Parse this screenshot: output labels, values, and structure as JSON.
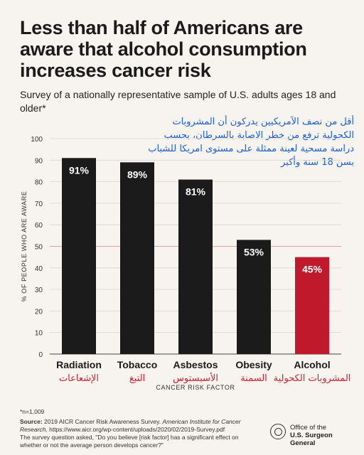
{
  "title": "Less than half of Americans are aware that alcohol consumption increases cancer risk",
  "subtitle": "Survey of a nationally representative sample of U.S. adults ages 18 and older*",
  "arabic_note": "أقل من نصف الآمريكيين يدركون أن المشروبات الكحولية ترفع من خطر الاصابة بالسرطان، بحسب دراسة مسحية لعينة ممثلة على مستوى امريكا للشباب بسن 18  سنة وأكبر",
  "chart_data": {
    "type": "bar",
    "categories": [
      "Radiation",
      "Tobacco",
      "Asbestos",
      "Obesity",
      "Alcohol"
    ],
    "categories_arabic": [
      "الإشعاعات",
      "التبغ",
      "الأسبستوس",
      "السمنة",
      "المشروبات الكحولية"
    ],
    "values": [
      91,
      89,
      81,
      53,
      45
    ],
    "value_labels": [
      "91%",
      "89%",
      "81%",
      "53%",
      "45%"
    ],
    "xlabel": "CANCER RISK FACTOR",
    "ylabel": "% OF PEOPLE WHO ARE AWARE",
    "ylim": [
      0,
      100
    ],
    "yticks": [
      0,
      10,
      20,
      30,
      40,
      50,
      60,
      70,
      80,
      90,
      100
    ],
    "reference_line": 50,
    "grid": true,
    "colors": {
      "bar": "#1b1b1b",
      "highlight_bar": "#c0192c",
      "reference_line": "#e8a0a0",
      "grid": "#d9d4cd",
      "arabic_label": "#d61f2c"
    }
  },
  "footnote_n": "*n=1,009",
  "source_label": "Source:",
  "source_text": "2019 AICR Cancer Risk Awareness Survey.",
  "source_journal": "American Institute for Cancer Research,",
  "source_url": "https://www.aicr.org/wp-content/uploads/2020/02/2019-Survey.pdf",
  "question_text": "The survey question asked, \"Do you believe [risk factor] has a significant effect on whether or not the average person develops cancer?\"",
  "logo": {
    "line1": "Office of the",
    "line2": "U.S. Surgeon General"
  }
}
